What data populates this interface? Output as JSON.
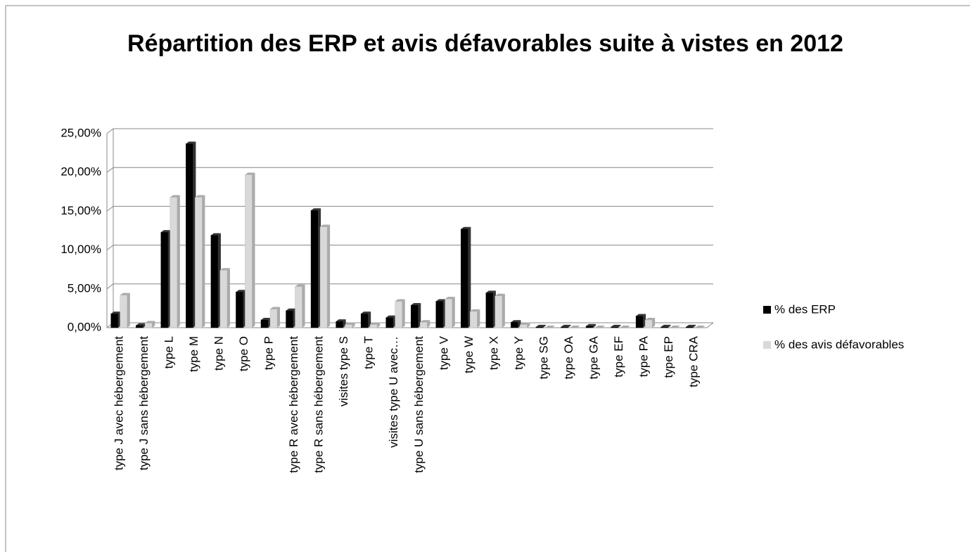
{
  "chart_data": {
    "type": "bar",
    "title": "Répartition des ERP et avis défavorables suite à vistes en 2012",
    "categories": [
      "type J avec hébergement",
      "type J sans hébergement",
      "type L",
      "type M",
      "type N",
      "type O",
      "type P",
      "type R avec hébergement",
      "type R sans hébergement",
      "visites type S",
      "type T",
      "visites type U avec…",
      "type U sans hébergement",
      "type V",
      "type W",
      "type X",
      "type Y",
      "type SG",
      "type OA",
      "type GA",
      "type EF",
      "type PA",
      "type EP",
      "type CRA"
    ],
    "series": [
      {
        "name": "% des ERP",
        "color": "#000000",
        "values": [
          1.8,
          0.3,
          12.3,
          23.7,
          11.9,
          4.6,
          1.0,
          2.2,
          15.1,
          0.8,
          1.8,
          1.3,
          2.9,
          3.4,
          12.7,
          4.5,
          0.7,
          0.1,
          0.1,
          0.2,
          0.1,
          1.5,
          0.1,
          0.1
        ]
      },
      {
        "name": "% des avis défavorables",
        "color": "#d9d9d9",
        "values": [
          4.2,
          0.6,
          16.8,
          16.8,
          7.4,
          19.7,
          2.4,
          5.3,
          13.0,
          0.4,
          0.4,
          3.4,
          0.7,
          3.7,
          2.1,
          4.1,
          0.4,
          0,
          0,
          0,
          0,
          1.0,
          0,
          0
        ]
      }
    ],
    "ylim": [
      0,
      25
    ],
    "yticks": [
      {
        "value": 0,
        "label": "0,00%"
      },
      {
        "value": 5,
        "label": "5,00%"
      },
      {
        "value": 10,
        "label": "10,00%"
      },
      {
        "value": 15,
        "label": "15,00%"
      },
      {
        "value": 20,
        "label": "20,00%"
      },
      {
        "value": 25,
        "label": "25,00%"
      }
    ],
    "grid": true,
    "legend": "right"
  }
}
